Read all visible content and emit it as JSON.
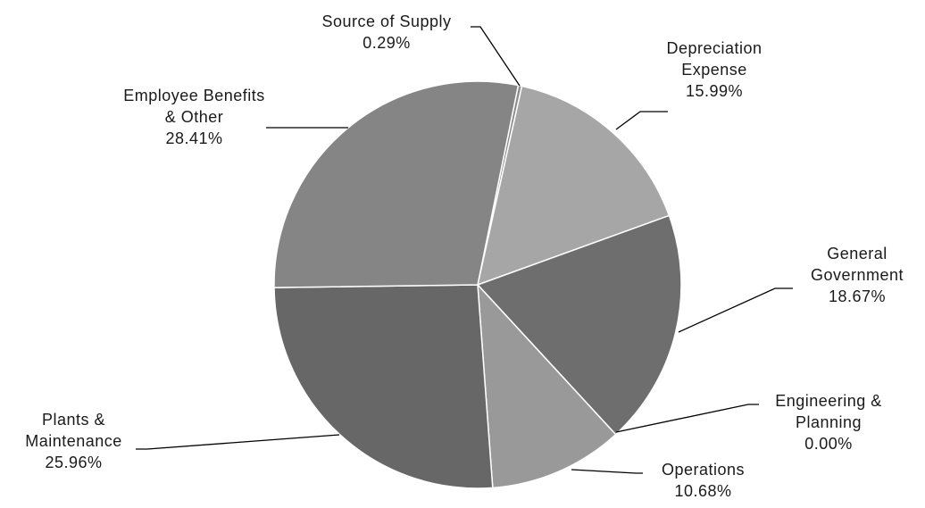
{
  "chart_data": {
    "type": "pie",
    "categories": [
      "Source of Supply",
      "Depreciation Expense",
      "General Government",
      "Engineering & Planning",
      "Operations",
      "Plants & Maintenance",
      "Employee Benefits & Other"
    ],
    "values": [
      0.29,
      15.99,
      18.67,
      0.0,
      10.68,
      25.96,
      28.41
    ],
    "value_labels": [
      "0.29%",
      "15.99%",
      "18.67%",
      "0.00%",
      "10.68%",
      "25.96%",
      "28.41%"
    ],
    "colors": [
      "#8c8c8c",
      "#a6a6a6",
      "#6e6e6e",
      "#7a7a7a",
      "#999999",
      "#676767",
      "#858585"
    ],
    "legend": false
  }
}
